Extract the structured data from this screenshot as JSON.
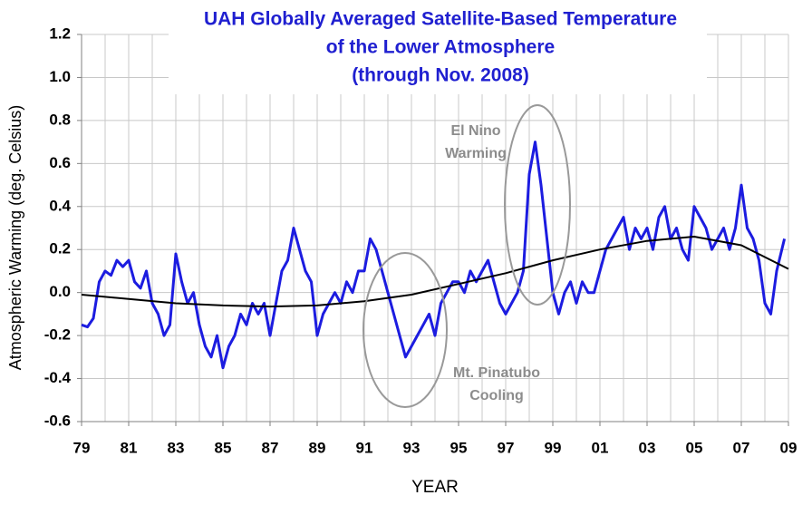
{
  "chart_data": {
    "type": "line",
    "title": [
      "UAH Globally Averaged Satellite-Based Temperature",
      "of the Lower Atmosphere",
      "(through Nov. 2008)"
    ],
    "x_label": "YEAR",
    "y_label": "Atmospheric Warming (deg. Celsius)",
    "annotations": [
      {
        "lines": [
          "El Nino",
          "Warming"
        ]
      },
      {
        "lines": [
          "Mt. Pinatubo",
          "Cooling"
        ]
      }
    ],
    "xlim": [
      1979,
      2009
    ],
    "xticks": [
      {
        "value": 1979,
        "label": "79"
      },
      {
        "value": 1981,
        "label": "81"
      },
      {
        "value": 1983,
        "label": "83"
      },
      {
        "value": 1985,
        "label": "85"
      },
      {
        "value": 1987,
        "label": "87"
      },
      {
        "value": 1989,
        "label": "89"
      },
      {
        "value": 1991,
        "label": "91"
      },
      {
        "value": 1993,
        "label": "93"
      },
      {
        "value": 1995,
        "label": "95"
      },
      {
        "value": 1997,
        "label": "97"
      },
      {
        "value": 1999,
        "label": "99"
      },
      {
        "value": 2001,
        "label": "01"
      },
      {
        "value": 2003,
        "label": "03"
      },
      {
        "value": 2005,
        "label": "05"
      },
      {
        "value": 2007,
        "label": "07"
      },
      {
        "value": 2009,
        "label": "09"
      }
    ],
    "ylim": [
      -0.6,
      1.2
    ],
    "yticks": [
      -0.6,
      -0.4,
      -0.2,
      {
        "value": 0,
        "label": "0.0"
      },
      0.2,
      0.4,
      0.6,
      0.8,
      {
        "value": 1,
        "label": "1.0"
      },
      1.2
    ],
    "grid": true,
    "series": [
      {
        "color": "#1c1ce0",
        "x": [
          1979,
          1979.25,
          1979.5,
          1979.75,
          1980,
          1980.25,
          1980.5,
          1980.75,
          1981,
          1981.25,
          1981.5,
          1981.75,
          1982,
          1982.25,
          1982.5,
          1982.75,
          1983,
          1983.25,
          1983.5,
          1983.75,
          1984,
          1984.25,
          1984.5,
          1984.75,
          1985,
          1985.25,
          1985.5,
          1985.75,
          1986,
          1986.25,
          1986.5,
          1986.75,
          1987,
          1987.25,
          1987.5,
          1987.75,
          1988,
          1988.25,
          1988.5,
          1988.75,
          1989,
          1989.25,
          1989.5,
          1989.75,
          1990,
          1990.25,
          1990.5,
          1990.75,
          1991,
          1991.25,
          1991.5,
          1991.75,
          1992,
          1992.25,
          1992.5,
          1992.75,
          1993,
          1993.25,
          1993.5,
          1993.75,
          1994,
          1994.25,
          1994.5,
          1994.75,
          1995,
          1995.25,
          1995.5,
          1995.75,
          1996,
          1996.25,
          1996.5,
          1996.75,
          1997,
          1997.25,
          1997.5,
          1997.75,
          1998,
          1998.25,
          1998.5,
          1998.75,
          1999,
          1999.25,
          1999.5,
          1999.75,
          2000,
          2000.25,
          2000.5,
          2000.75,
          2001,
          2001.25,
          2001.5,
          2001.75,
          2002,
          2002.25,
          2002.5,
          2002.75,
          2003,
          2003.25,
          2003.5,
          2003.75,
          2004,
          2004.25,
          2004.5,
          2004.75,
          2005,
          2005.25,
          2005.5,
          2005.75,
          2006,
          2006.25,
          2006.5,
          2006.75,
          2007,
          2007.25,
          2007.5,
          2007.75,
          2008,
          2008.25,
          2008.5,
          2008.83
        ],
        "values": [
          -0.15,
          -0.16,
          -0.12,
          0.05,
          0.1,
          0.08,
          0.15,
          0.12,
          0.15,
          0.05,
          0.02,
          0.1,
          -0.05,
          -0.1,
          -0.2,
          -0.15,
          0.18,
          0.05,
          -0.05,
          0.0,
          -0.15,
          -0.25,
          -0.3,
          -0.2,
          -0.35,
          -0.25,
          -0.2,
          -0.1,
          -0.15,
          -0.05,
          -0.1,
          -0.05,
          -0.2,
          -0.05,
          0.1,
          0.15,
          0.3,
          0.2,
          0.1,
          0.05,
          -0.2,
          -0.1,
          -0.05,
          0.0,
          -0.05,
          0.05,
          0.0,
          0.1,
          0.1,
          0.25,
          0.2,
          0.1,
          0.0,
          -0.1,
          -0.2,
          -0.3,
          -0.25,
          -0.2,
          -0.15,
          -0.1,
          -0.2,
          -0.05,
          0.0,
          0.05,
          0.05,
          0.0,
          0.1,
          0.05,
          0.1,
          0.15,
          0.05,
          -0.05,
          -0.1,
          -0.05,
          0.0,
          0.1,
          0.55,
          0.7,
          0.5,
          0.25,
          0.0,
          -0.1,
          0.0,
          0.05,
          -0.05,
          0.05,
          0.0,
          0.0,
          0.1,
          0.2,
          0.25,
          0.3,
          0.35,
          0.2,
          0.3,
          0.25,
          0.3,
          0.2,
          0.35,
          0.4,
          0.25,
          0.3,
          0.2,
          0.15,
          0.4,
          0.35,
          0.3,
          0.2,
          0.25,
          0.3,
          0.2,
          0.3,
          0.5,
          0.3,
          0.25,
          0.15,
          -0.05,
          -0.1,
          0.1,
          0.25
        ]
      },
      {
        "color": "#000000",
        "x": [
          1979,
          1981,
          1983,
          1985,
          1987,
          1989,
          1991,
          1993,
          1995,
          1997,
          1999,
          2001,
          2003,
          2005,
          2007,
          2009
        ],
        "values": [
          -0.01,
          -0.03,
          -0.05,
          -0.06,
          -0.065,
          -0.06,
          -0.04,
          -0.01,
          0.04,
          0.09,
          0.15,
          0.2,
          0.24,
          0.26,
          0.22,
          0.11
        ]
      }
    ]
  }
}
